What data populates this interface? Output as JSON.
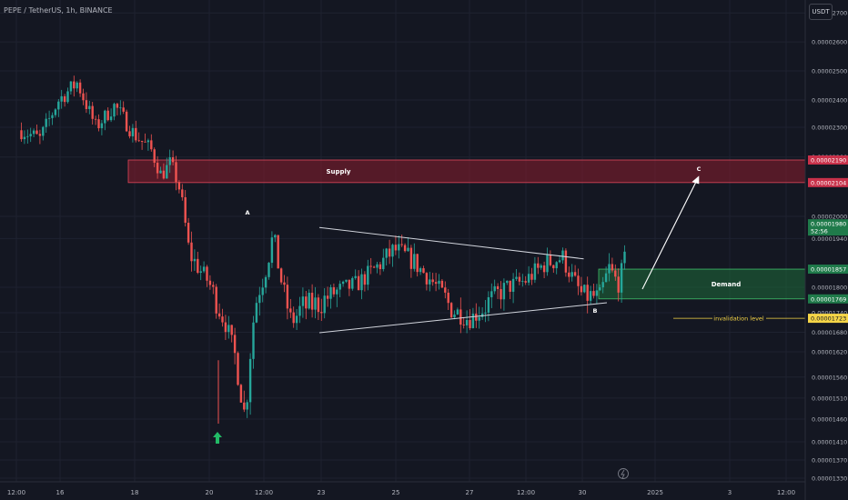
{
  "header": {
    "title": "PEPE / TetherUS, 1h, BINANCE",
    "unit": "USDT"
  },
  "colors": {
    "background": "#141722",
    "up": "#26a69a",
    "down": "#ef5350",
    "supply": "#8a1d2e",
    "demand": "#1e6b3a",
    "invalidation": "#f5d547",
    "arrow": "#22bb66"
  },
  "chart_data": {
    "type": "candlestick",
    "pair": "PEPE / TetherUS",
    "timeframe": "1h",
    "exchange": "BINANCE",
    "y_axis": {
      "unit": "USDT",
      "range": [
        1.33e-05,
        2.71e-05
      ],
      "ticks": [
        "0.00002700",
        "0.00002600",
        "0.00002500",
        "0.00002400",
        "0.00002300",
        "0.00002200",
        "0.00002000",
        "0.00001940",
        "0.00001800",
        "0.00001740",
        "0.00001680",
        "0.00001620",
        "0.00001560",
        "0.00001510",
        "0.00001460",
        "0.00001410",
        "0.00001370",
        "0.00001330"
      ]
    },
    "x_axis": {
      "ticks": [
        "12:00",
        "16",
        "18",
        "20",
        "12:00",
        "23",
        "25",
        "27",
        "12:00",
        "30",
        "2025",
        "3",
        "12:00"
      ]
    },
    "price_path": [
      [
        "14 12:00",
        2.29e-05
      ],
      [
        "15",
        2.26e-05
      ],
      [
        "15 12:00",
        2.4e-05
      ],
      [
        "16",
        2.46e-05
      ],
      [
        "16 12:00",
        2.3e-05
      ],
      [
        "17",
        2.38e-05
      ],
      [
        "17 12:00",
        2.28e-05
      ],
      [
        "18",
        2.22e-05
      ],
      [
        "18 06:00",
        2.13e-05
      ],
      [
        "18 12:00",
        2.18e-05
      ],
      [
        "18 18:00",
        2.08e-05
      ],
      [
        "19",
        1.9e-05
      ],
      [
        "19 12:00",
        1.82e-05
      ],
      [
        "19 18:00",
        1.76e-05
      ],
      [
        "20",
        1.7e-05
      ],
      [
        "20 06:00",
        1.6e-05
      ],
      [
        "20 12:00",
        1.46e-05
      ],
      [
        "20 18:00",
        1.75e-05
      ],
      [
        "21",
        1.83e-05
      ],
      [
        "21 06:00",
        1.95e-05
      ],
      [
        "21 12:00",
        1.8e-05
      ],
      [
        "21 18:00",
        1.71e-05
      ],
      [
        "22",
        1.75e-05
      ],
      [
        "22 12:00",
        1.76e-05
      ],
      [
        "23",
        1.79e-05
      ],
      [
        "23 12:00",
        1.81e-05
      ],
      [
        "24",
        1.86e-05
      ],
      [
        "24 12:00",
        1.91e-05
      ],
      [
        "25",
        1.88e-05
      ],
      [
        "25 12:00",
        1.82e-05
      ],
      [
        "26",
        1.75e-05
      ],
      [
        "26 12:00",
        1.72e-05
      ],
      [
        "27",
        1.76e-05
      ],
      [
        "27 12:00",
        1.8e-05
      ],
      [
        "28",
        1.82e-05
      ],
      [
        "28 12:00",
        1.87e-05
      ],
      [
        "29",
        1.89e-05
      ],
      [
        "29 12:00",
        1.78e-05
      ],
      [
        "30",
        1.77e-05
      ],
      [
        "30 06:00",
        1.86e-05
      ],
      [
        "30 12:00",
        1.81e-05
      ],
      [
        "30 18:00",
        1.91e-05
      ]
    ],
    "annotations": {
      "supply_zone": {
        "label": "Supply",
        "top": 2.19e-05,
        "bottom": 2.104e-05
      },
      "demand_zone": {
        "label": "Demand",
        "top": 1.857e-05,
        "bottom": 1.769e-05
      },
      "invalidation_level": {
        "label": "invalidation level",
        "price": 1.723e-05
      },
      "triangle": {
        "upper": [
          [
            "22",
            1.97e-05
          ],
          [
            "29 12:00",
            1.9e-05
          ]
        ],
        "lower": [
          [
            "22",
            1.69e-05
          ],
          [
            "30 18:00",
            1.76e-05
          ]
        ]
      },
      "wave_labels": [
        {
          "label": "A",
          "time": "21 06:00",
          "price": 1.96e-05
        },
        {
          "label": "B",
          "time": "30 12:00",
          "price": 1.73e-05
        },
        {
          "label": "C",
          "time": "2 12:00",
          "price": 2.14e-05
        }
      ],
      "projection_arrow": {
        "from": [
          "31",
          1.8e-05
        ],
        "to": [
          "2 12:00",
          2.1e-05
        ]
      }
    },
    "price_labels": [
      {
        "value": "0.00002190",
        "kind": "supply-top"
      },
      {
        "value": "0.00002104",
        "kind": "supply-bottom"
      },
      {
        "value": "0.00001980",
        "kind": "last-price",
        "sub": "52:56"
      },
      {
        "value": "0.00001857",
        "kind": "demand-top"
      },
      {
        "value": "0.00001769",
        "kind": "demand-bottom"
      },
      {
        "value": "0.00001723",
        "kind": "invalidation"
      }
    ]
  }
}
